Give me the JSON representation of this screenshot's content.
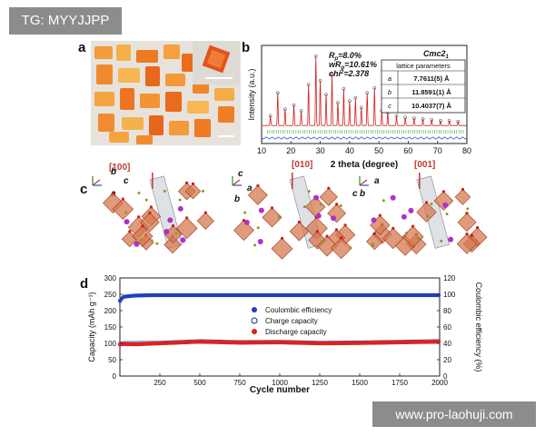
{
  "watermarks": {
    "top_left": "TG: MYYJJPP",
    "bottom_right": "www.pro-laohuji.com"
  },
  "panels": {
    "a": "a",
    "b": "b",
    "c": "c",
    "d": "d"
  },
  "panel_b": {
    "ylabel": "Intensity (a.u.)",
    "xlabel": "2 theta (degree)",
    "xticks": [
      "10",
      "20",
      "30",
      "40",
      "50",
      "60",
      "70",
      "80"
    ],
    "space_group": "Cmc2",
    "space_group_sub": "1",
    "stats": {
      "rp": "=8.0%",
      "wrp": "=10.61%",
      "chi": "=2.378"
    },
    "lattice_header": "lattice parameters",
    "lattice": [
      {
        "axis": "a",
        "value": "7.7611(5) Å"
      },
      {
        "axis": "b",
        "value": "11.8591(1) Å"
      },
      {
        "axis": "c",
        "value": "10.4037(7) Å"
      }
    ]
  },
  "panel_c": {
    "views": [
      {
        "direction": "[100]",
        "axis1": "b",
        "axis2": "c",
        "axis3": "a"
      },
      {
        "direction": "[010]",
        "axis1": "c",
        "axis2": "a",
        "axis3": "b"
      },
      {
        "direction": "[001]",
        "axis1": "a",
        "axis2": "b",
        "axis3": "c"
      }
    ]
  },
  "chart_data": {
    "type": "scatter",
    "xlabel": "Cycle number",
    "ylabel": "Capacity (mAh g⁻¹)",
    "y2label": "Coulombic efficiency (%)",
    "xlim": [
      0,
      2000
    ],
    "ylim": [
      0,
      300
    ],
    "y2lim": [
      0,
      120
    ],
    "xticks": [
      250,
      500,
      750,
      1000,
      1250,
      1500,
      1750,
      2000
    ],
    "yticks": [
      0,
      50,
      100,
      150,
      200,
      250,
      300
    ],
    "y2ticks": [
      0,
      20,
      40,
      60,
      80,
      100,
      120
    ],
    "legend": {
      "placement": "center"
    },
    "series": [
      {
        "name": "Coulombic efficiency",
        "axis": "y2",
        "color": "#1f3fbf",
        "x": [
          1,
          20,
          100,
          250,
          500,
          750,
          1000,
          1250,
          1500,
          1750,
          2000
        ],
        "values": [
          92,
          97,
          98.5,
          99,
          99,
          99,
          99,
          99,
          99,
          99,
          99
        ]
      },
      {
        "name": "Charge capacity",
        "axis": "y",
        "color": "#1a2a8a",
        "x": [
          1,
          20,
          100,
          250,
          500,
          750,
          1000,
          1250,
          1500,
          1750,
          2000
        ],
        "values": [
          98,
          100,
          100,
          101,
          106,
          103,
          104,
          101,
          102,
          104,
          106
        ]
      },
      {
        "name": "Discharge capacity",
        "axis": "y",
        "color": "#e02020",
        "x": [
          1,
          20,
          100,
          250,
          500,
          750,
          1000,
          1250,
          1500,
          1750,
          2000
        ],
        "values": [
          96,
          98,
          97,
          100,
          105,
          102,
          103,
          100,
          101,
          103,
          105
        ]
      }
    ]
  }
}
